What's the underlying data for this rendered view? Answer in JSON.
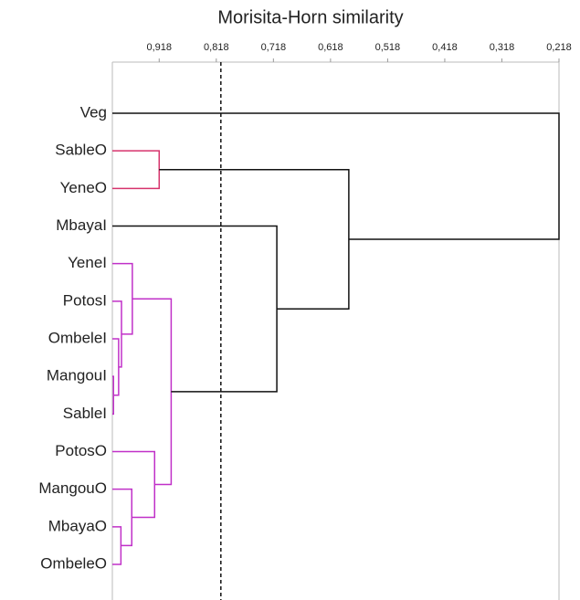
{
  "chart_data": {
    "type": "dendrogram",
    "title": "Morisita-Horn similarity",
    "xlim": [
      1.0,
      0.218
    ],
    "xticks": [
      {
        "value": 0.918,
        "label": "0,918"
      },
      {
        "value": 0.818,
        "label": "0,818"
      },
      {
        "value": 0.718,
        "label": "0,718"
      },
      {
        "value": 0.618,
        "label": "0,618"
      },
      {
        "value": 0.518,
        "label": "0,518"
      },
      {
        "value": 0.418,
        "label": "0,418"
      },
      {
        "value": 0.318,
        "label": "0,318"
      },
      {
        "value": 0.218,
        "label": "0,218"
      }
    ],
    "threshold": 0.81,
    "leaves": [
      "Veg",
      "SableO",
      "YeneO",
      "MbayaI",
      "YeneI",
      "PotosI",
      "OmbeleI",
      "MangouI",
      "SableI",
      "PotosO",
      "MangouO",
      "MbayaO",
      "OmbeleO"
    ],
    "merges": [
      {
        "a": 1,
        "b": 2,
        "similarity": 0.918,
        "color": "#d6336c"
      },
      {
        "a": 7,
        "b": 8,
        "similarity": 0.998,
        "color": "#c030c8"
      },
      {
        "a": 6,
        "b": 14,
        "similarity": 0.989,
        "color": "#c030c8"
      },
      {
        "a": 5,
        "b": 15,
        "similarity": 0.984,
        "color": "#c030c8"
      },
      {
        "a": 4,
        "b": 16,
        "similarity": 0.965,
        "color": "#c030c8"
      },
      {
        "a": 11,
        "b": 12,
        "similarity": 0.985,
        "color": "#c030c8"
      },
      {
        "a": 10,
        "b": 18,
        "similarity": 0.966,
        "color": "#c030c8"
      },
      {
        "a": 9,
        "b": 19,
        "similarity": 0.926,
        "color": "#c030c8"
      },
      {
        "a": 17,
        "b": 20,
        "similarity": 0.897,
        "color": "#c030c8"
      },
      {
        "a": 3,
        "b": 21,
        "similarity": 0.712,
        "color": "#111111"
      },
      {
        "a": 13,
        "b": 22,
        "similarity": 0.586,
        "color": "#111111"
      },
      {
        "a": 0,
        "b": 23,
        "similarity": 0.218,
        "color": "#111111"
      }
    ]
  }
}
